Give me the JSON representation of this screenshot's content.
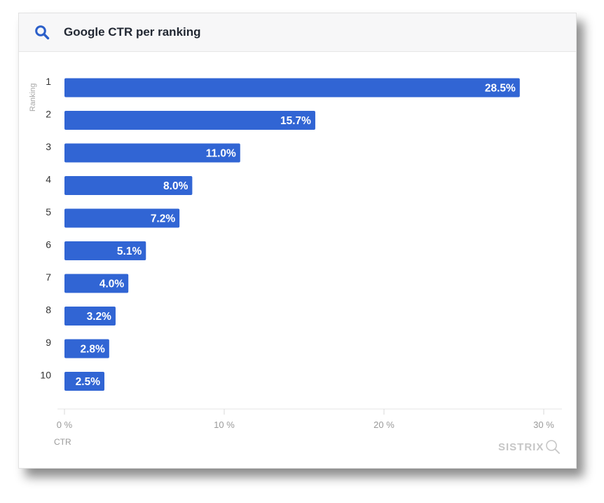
{
  "header": {
    "title": "Google CTR per ranking",
    "icon": "search-icon"
  },
  "chart_data": {
    "type": "bar",
    "orientation": "horizontal",
    "categories": [
      "1",
      "2",
      "3",
      "4",
      "5",
      "6",
      "7",
      "8",
      "9",
      "10"
    ],
    "values": [
      28.5,
      15.7,
      11.0,
      8.0,
      7.2,
      5.1,
      4.0,
      3.2,
      2.8,
      2.5
    ],
    "value_labels": [
      "28.5%",
      "15.7%",
      "11.0%",
      "8.0%",
      "7.2%",
      "5.1%",
      "4.0%",
      "3.2%",
      "2.8%",
      "2.5%"
    ],
    "title": "Google CTR per ranking",
    "xlabel": "CTR",
    "ylabel": "Ranking",
    "xlim": [
      0,
      30
    ],
    "xticks": [
      0,
      10,
      20,
      30
    ],
    "xtick_labels": [
      "0 %",
      "10 %",
      "20 %",
      "30 %"
    ],
    "grid": true,
    "bar_color": "#3165d4"
  },
  "watermark": {
    "text": "SISTRIX"
  }
}
